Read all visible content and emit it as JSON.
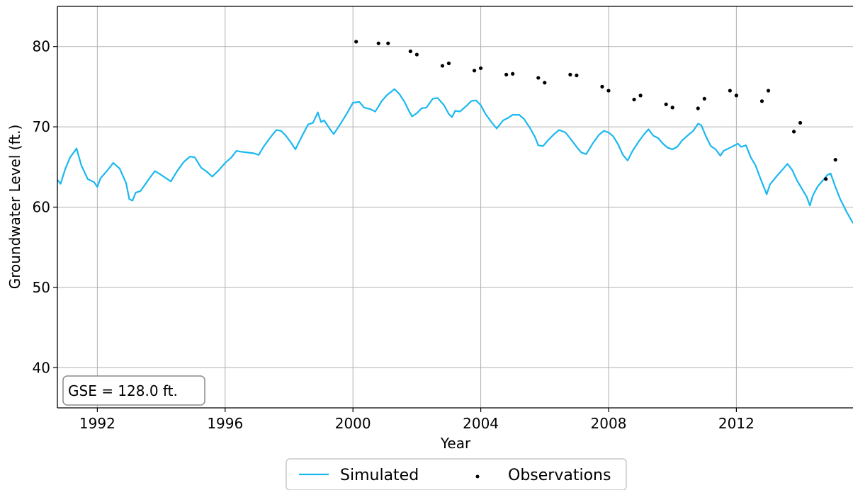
{
  "chart_data": {
    "type": "line",
    "title": "",
    "xlabel": "Year",
    "ylabel": "Groundwater Level (ft.)",
    "xlim": [
      1990.75,
      2015.65
    ],
    "ylim": [
      35,
      85
    ],
    "x_ticks": [
      1992,
      1996,
      2000,
      2004,
      2008,
      2012
    ],
    "y_ticks": [
      40,
      50,
      60,
      70,
      80
    ],
    "grid": true,
    "annotation": "GSE = 128.0 ft.",
    "legend": {
      "placement": "bottom-center-outside",
      "entries": [
        "Simulated",
        "Observations"
      ]
    },
    "colors": {
      "simulated": "#1ab8ef",
      "observations": "#000000",
      "grid": "#b0b0b0"
    },
    "series": [
      {
        "name": "Simulated",
        "kind": "line",
        "points": [
          [
            1990.75,
            63.4
          ],
          [
            1990.85,
            62.9
          ],
          [
            1991.0,
            64.8
          ],
          [
            1991.15,
            66.2
          ],
          [
            1991.35,
            67.3
          ],
          [
            1991.5,
            65.2
          ],
          [
            1991.7,
            63.5
          ],
          [
            1991.9,
            63.1
          ],
          [
            1992.0,
            62.5
          ],
          [
            1992.1,
            63.6
          ],
          [
            1992.3,
            64.5
          ],
          [
            1992.5,
            65.5
          ],
          [
            1992.7,
            64.8
          ],
          [
            1992.9,
            63.0
          ],
          [
            1993.0,
            61.0
          ],
          [
            1993.1,
            60.8
          ],
          [
            1993.2,
            61.8
          ],
          [
            1993.35,
            62.0
          ],
          [
            1993.6,
            63.4
          ],
          [
            1993.8,
            64.5
          ],
          [
            1994.0,
            64.0
          ],
          [
            1994.3,
            63.2
          ],
          [
            1994.5,
            64.5
          ],
          [
            1994.7,
            65.6
          ],
          [
            1994.9,
            66.3
          ],
          [
            1995.05,
            66.2
          ],
          [
            1995.25,
            64.9
          ],
          [
            1995.4,
            64.5
          ],
          [
            1995.6,
            63.8
          ],
          [
            1995.8,
            64.6
          ],
          [
            1996.0,
            65.5
          ],
          [
            1996.2,
            66.2
          ],
          [
            1996.35,
            67.0
          ],
          [
            1996.5,
            66.9
          ],
          [
            1996.7,
            66.8
          ],
          [
            1996.9,
            66.7
          ],
          [
            1997.05,
            66.5
          ],
          [
            1997.2,
            67.5
          ],
          [
            1997.4,
            68.6
          ],
          [
            1997.6,
            69.6
          ],
          [
            1997.75,
            69.5
          ],
          [
            1997.9,
            68.9
          ],
          [
            1998.05,
            68.1
          ],
          [
            1998.2,
            67.2
          ],
          [
            1998.4,
            68.8
          ],
          [
            1998.6,
            70.3
          ],
          [
            1998.75,
            70.5
          ],
          [
            1998.9,
            71.8
          ],
          [
            1999.0,
            70.6
          ],
          [
            1999.1,
            70.8
          ],
          [
            1999.3,
            69.6
          ],
          [
            1999.4,
            69.1
          ],
          [
            1999.6,
            70.3
          ],
          [
            1999.8,
            71.6
          ],
          [
            2000.0,
            73.0
          ],
          [
            2000.2,
            73.1
          ],
          [
            2000.35,
            72.4
          ],
          [
            2000.55,
            72.2
          ],
          [
            2000.7,
            71.9
          ],
          [
            2000.9,
            73.2
          ],
          [
            2001.05,
            73.9
          ],
          [
            2001.3,
            74.7
          ],
          [
            2001.45,
            74.1
          ],
          [
            2001.6,
            73.2
          ],
          [
            2001.75,
            72.0
          ],
          [
            2001.85,
            71.3
          ],
          [
            2002.0,
            71.7
          ],
          [
            2002.15,
            72.3
          ],
          [
            2002.3,
            72.4
          ],
          [
            2002.5,
            73.5
          ],
          [
            2002.65,
            73.6
          ],
          [
            2002.85,
            72.7
          ],
          [
            2003.0,
            71.6
          ],
          [
            2003.1,
            71.2
          ],
          [
            2003.2,
            72.0
          ],
          [
            2003.35,
            71.9
          ],
          [
            2003.55,
            72.6
          ],
          [
            2003.7,
            73.2
          ],
          [
            2003.85,
            73.3
          ],
          [
            2004.0,
            72.7
          ],
          [
            2004.15,
            71.6
          ],
          [
            2004.35,
            70.5
          ],
          [
            2004.5,
            69.8
          ],
          [
            2004.7,
            70.8
          ],
          [
            2004.85,
            71.1
          ],
          [
            2005.0,
            71.5
          ],
          [
            2005.2,
            71.5
          ],
          [
            2005.35,
            71.0
          ],
          [
            2005.55,
            69.8
          ],
          [
            2005.7,
            68.7
          ],
          [
            2005.8,
            67.7
          ],
          [
            2005.95,
            67.6
          ],
          [
            2006.1,
            68.3
          ],
          [
            2006.3,
            69.1
          ],
          [
            2006.45,
            69.6
          ],
          [
            2006.65,
            69.3
          ],
          [
            2006.85,
            68.3
          ],
          [
            2007.0,
            67.5
          ],
          [
            2007.15,
            66.8
          ],
          [
            2007.3,
            66.6
          ],
          [
            2007.5,
            67.9
          ],
          [
            2007.7,
            69.0
          ],
          [
            2007.85,
            69.5
          ],
          [
            2008.0,
            69.3
          ],
          [
            2008.15,
            68.8
          ],
          [
            2008.3,
            67.8
          ],
          [
            2008.45,
            66.5
          ],
          [
            2008.6,
            65.8
          ],
          [
            2008.75,
            67.0
          ],
          [
            2008.95,
            68.2
          ],
          [
            2009.1,
            69.0
          ],
          [
            2009.25,
            69.7
          ],
          [
            2009.4,
            68.9
          ],
          [
            2009.55,
            68.6
          ],
          [
            2009.7,
            67.9
          ],
          [
            2009.85,
            67.4
          ],
          [
            2010.0,
            67.2
          ],
          [
            2010.15,
            67.5
          ],
          [
            2010.3,
            68.3
          ],
          [
            2010.5,
            69.0
          ],
          [
            2010.65,
            69.5
          ],
          [
            2010.8,
            70.4
          ],
          [
            2010.9,
            70.2
          ],
          [
            2011.05,
            68.8
          ],
          [
            2011.2,
            67.6
          ],
          [
            2011.35,
            67.2
          ],
          [
            2011.5,
            66.4
          ],
          [
            2011.6,
            67.0
          ],
          [
            2011.75,
            67.3
          ],
          [
            2011.9,
            67.6
          ],
          [
            2012.05,
            67.9
          ],
          [
            2012.15,
            67.5
          ],
          [
            2012.3,
            67.7
          ],
          [
            2012.45,
            66.2
          ],
          [
            2012.6,
            65.2
          ],
          [
            2012.75,
            63.6
          ],
          [
            2012.95,
            61.6
          ],
          [
            2013.05,
            62.8
          ],
          [
            2013.25,
            63.8
          ],
          [
            2013.45,
            64.7
          ],
          [
            2013.6,
            65.4
          ],
          [
            2013.75,
            64.6
          ],
          [
            2013.9,
            63.3
          ],
          [
            2014.05,
            62.3
          ],
          [
            2014.2,
            61.3
          ],
          [
            2014.3,
            60.2
          ],
          [
            2014.4,
            61.5
          ],
          [
            2014.55,
            62.6
          ],
          [
            2014.7,
            63.3
          ],
          [
            2014.85,
            64.0
          ],
          [
            2014.95,
            64.2
          ],
          [
            2015.1,
            62.5
          ],
          [
            2015.25,
            61.0
          ],
          [
            2015.35,
            60.2
          ],
          [
            2015.45,
            59.4
          ],
          [
            2015.55,
            58.7
          ],
          [
            2015.65,
            58.0
          ]
        ]
      },
      {
        "name": "Observations",
        "kind": "scatter",
        "points": [
          [
            2000.1,
            80.6
          ],
          [
            2000.8,
            80.4
          ],
          [
            2001.1,
            80.4
          ],
          [
            2001.8,
            79.4
          ],
          [
            2002.0,
            79.0
          ],
          [
            2002.8,
            77.6
          ],
          [
            2003.0,
            77.9
          ],
          [
            2003.8,
            77.0
          ],
          [
            2004.0,
            77.3
          ],
          [
            2004.8,
            76.5
          ],
          [
            2005.0,
            76.6
          ],
          [
            2005.8,
            76.1
          ],
          [
            2006.0,
            75.5
          ],
          [
            2006.8,
            76.5
          ],
          [
            2007.0,
            76.4
          ],
          [
            2007.8,
            75.0
          ],
          [
            2008.0,
            74.5
          ],
          [
            2008.8,
            73.4
          ],
          [
            2009.0,
            73.9
          ],
          [
            2009.8,
            72.8
          ],
          [
            2010.0,
            72.4
          ],
          [
            2010.8,
            72.3
          ],
          [
            2011.0,
            73.5
          ],
          [
            2011.8,
            74.5
          ],
          [
            2012.0,
            73.9
          ],
          [
            2012.8,
            73.2
          ],
          [
            2013.0,
            74.5
          ],
          [
            2013.8,
            69.4
          ],
          [
            2014.0,
            70.5
          ],
          [
            2014.8,
            63.5
          ],
          [
            2015.1,
            65.9
          ]
        ]
      }
    ]
  }
}
